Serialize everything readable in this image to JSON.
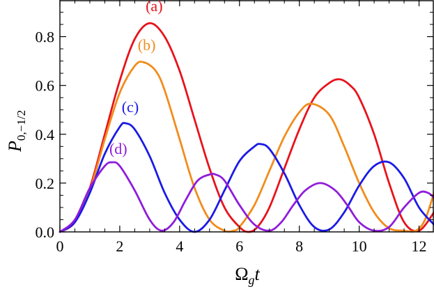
{
  "chart_data": {
    "type": "line",
    "xlabel": {
      "main": "Ω",
      "sub": "g",
      "tail": "t"
    },
    "ylabel": {
      "main": "P",
      "sub": "0,−1/2"
    },
    "xlim": [
      0,
      12.5
    ],
    "ylim": [
      0,
      0.95
    ],
    "x_ticks": [
      0,
      2,
      4,
      6,
      8,
      10,
      12
    ],
    "y_ticks": [
      0.0,
      0.2,
      0.4,
      0.6,
      0.8
    ],
    "x_tick_labels": [
      "0",
      "2",
      "4",
      "6",
      "8",
      "10",
      "12"
    ],
    "y_tick_labels": [
      "0.0",
      "0.2",
      "0.4",
      "0.6",
      "0.8"
    ],
    "grid": false,
    "series": [
      {
        "name": "(a)",
        "color": "#e8121b",
        "x": [
          0,
          0.5,
          1.0,
          1.5,
          2.0,
          2.5,
          3.0,
          3.5,
          4.0,
          4.5,
          5.0,
          5.5,
          6.0,
          6.3,
          6.6,
          7.0,
          7.5,
          8.0,
          8.5,
          9.0,
          9.35,
          9.7,
          10.0,
          10.5,
          11.0,
          11.5,
          12.0,
          12.5
        ],
        "y": [
          0,
          0.04,
          0.18,
          0.4,
          0.62,
          0.79,
          0.855,
          0.8,
          0.66,
          0.46,
          0.26,
          0.1,
          0.02,
          0.0,
          0.02,
          0.1,
          0.26,
          0.42,
          0.55,
          0.61,
          0.625,
          0.6,
          0.55,
          0.4,
          0.2,
          0.04,
          0.005,
          0.08
        ]
      },
      {
        "name": "(b)",
        "color": "#f28c1c",
        "x": [
          0,
          0.5,
          1.0,
          1.5,
          2.0,
          2.5,
          2.8,
          3.2,
          3.5,
          4.0,
          4.5,
          5.0,
          5.5,
          5.8,
          6.0,
          6.5,
          7.0,
          7.5,
          8.0,
          8.4,
          9.0,
          9.5,
          10.0,
          10.5,
          11.0,
          11.5,
          11.9,
          12.2,
          12.5
        ],
        "y": [
          0,
          0.04,
          0.17,
          0.38,
          0.57,
          0.68,
          0.695,
          0.66,
          0.58,
          0.38,
          0.18,
          0.05,
          0.005,
          0.005,
          0.02,
          0.11,
          0.25,
          0.39,
          0.49,
          0.525,
          0.48,
          0.35,
          0.2,
          0.08,
          0.015,
          0.005,
          0.005,
          0.05,
          0.16
        ]
      },
      {
        "name": "(c)",
        "color": "#1a1ae6",
        "x": [
          0,
          0.5,
          1.0,
          1.5,
          2.0,
          2.2,
          2.5,
          3.0,
          3.5,
          4.0,
          4.5,
          5.0,
          5.5,
          6.0,
          6.5,
          6.7,
          7.0,
          7.5,
          8.0,
          8.5,
          9.0,
          9.5,
          10.0,
          10.5,
          11.0,
          11.5,
          12.0,
          12.5
        ],
        "y": [
          0,
          0.04,
          0.16,
          0.32,
          0.43,
          0.445,
          0.42,
          0.31,
          0.16,
          0.05,
          0.0,
          0.05,
          0.17,
          0.29,
          0.35,
          0.36,
          0.34,
          0.24,
          0.11,
          0.02,
          0.01,
          0.08,
          0.19,
          0.27,
          0.285,
          0.22,
          0.1,
          0.03
        ]
      },
      {
        "name": "(d)",
        "color": "#8f1cdb",
        "x": [
          0,
          0.5,
          1.0,
          1.5,
          1.75,
          2.0,
          2.5,
          3.0,
          3.4,
          3.8,
          4.2,
          4.6,
          5.0,
          5.2,
          5.5,
          6.0,
          6.5,
          7.0,
          7.4,
          7.8,
          8.2,
          8.7,
          9.2,
          9.6,
          10.0,
          10.5,
          11.0,
          11.5,
          12.0,
          12.3,
          12.5
        ],
        "y": [
          0,
          0.05,
          0.18,
          0.27,
          0.285,
          0.27,
          0.17,
          0.05,
          0.005,
          0.04,
          0.13,
          0.21,
          0.235,
          0.235,
          0.21,
          0.11,
          0.03,
          0.005,
          0.04,
          0.11,
          0.17,
          0.2,
          0.17,
          0.11,
          0.04,
          0.005,
          0.02,
          0.1,
          0.16,
          0.16,
          0.14
        ]
      }
    ],
    "series_labels_layout": [
      {
        "label": "(a)",
        "x": 3.15,
        "y": 0.905
      },
      {
        "label": "(b)",
        "x": 2.9,
        "y": 0.745
      },
      {
        "label": "(c)",
        "x": 2.35,
        "y": 0.49
      },
      {
        "label": "(d)",
        "x": 1.95,
        "y": 0.32
      }
    ]
  }
}
